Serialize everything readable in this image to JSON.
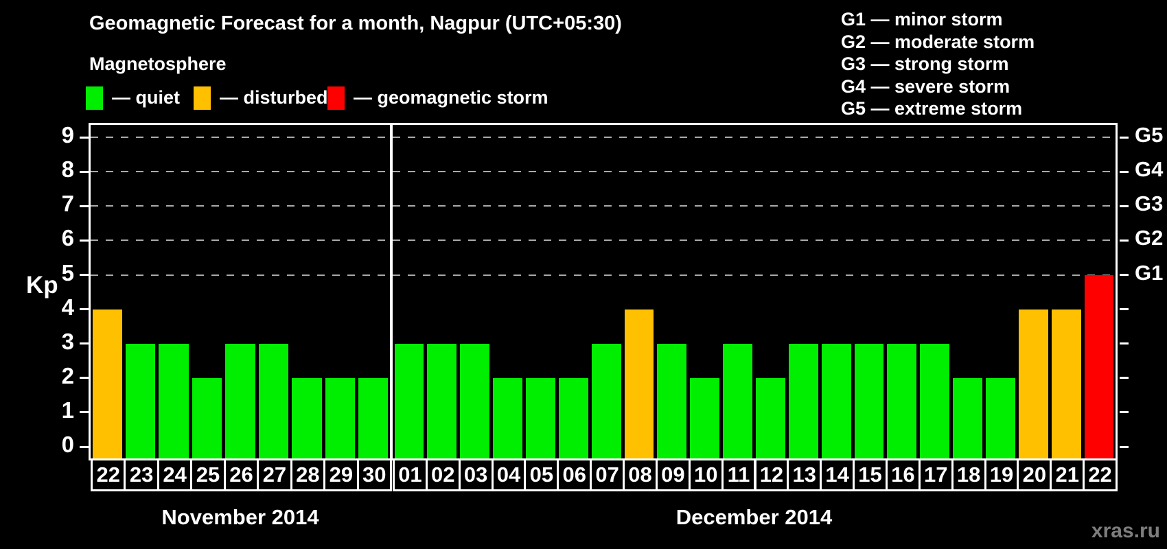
{
  "header": {
    "title": "Geomagnetic Forecast for a month, Nagpur (UTC+05:30)",
    "subtitle": "Magnetosphere"
  },
  "legend": {
    "items": [
      {
        "key": "quiet",
        "label": "— quiet",
        "color": "#00ee00"
      },
      {
        "key": "disturbed",
        "label": "— disturbed",
        "color": "#ffc000"
      },
      {
        "key": "storm",
        "label": "— geomagnetic storm",
        "color": "#ff0000"
      }
    ]
  },
  "g_legend": {
    "items": [
      "G1 — minor storm",
      "G2 — moderate storm",
      "G3 — strong storm",
      "G4 — severe storm",
      "G5 — extreme storm"
    ]
  },
  "axis": {
    "kp_label": "Kp"
  },
  "watermark": {
    "text": "xras.ru"
  },
  "chart_data": {
    "type": "bar",
    "title": "Geomagnetic Forecast for a month, Nagpur (UTC+05:30)",
    "ylabel": "Kp",
    "ylim": [
      0,
      9.7
    ],
    "y_ticks": [
      0,
      1,
      2,
      3,
      4,
      5,
      6,
      7,
      8,
      9
    ],
    "gridlines_at": [
      5,
      6,
      7,
      8,
      9
    ],
    "grid": "dashed",
    "legend_position": "top",
    "right_axis": [
      {
        "kp": 5,
        "label": "G1"
      },
      {
        "kp": 6,
        "label": "G2"
      },
      {
        "kp": 7,
        "label": "G3"
      },
      {
        "kp": 8,
        "label": "G4"
      },
      {
        "kp": 9,
        "label": "G5"
      }
    ],
    "status_colors": {
      "quiet": "#00ee00",
      "disturbed": "#ffc000",
      "storm": "#ff0000"
    },
    "groups": [
      {
        "month": "November 2014",
        "days": [
          "22",
          "23",
          "24",
          "25",
          "26",
          "27",
          "28",
          "29",
          "30"
        ],
        "values": [
          4,
          3,
          3,
          2,
          3,
          3,
          2,
          2,
          2
        ],
        "status": [
          "disturbed",
          "quiet",
          "quiet",
          "quiet",
          "quiet",
          "quiet",
          "quiet",
          "quiet",
          "quiet"
        ]
      },
      {
        "month": "December 2014",
        "days": [
          "01",
          "02",
          "03",
          "04",
          "05",
          "06",
          "07",
          "08",
          "09",
          "10",
          "11",
          "12",
          "13",
          "14",
          "15",
          "16",
          "17",
          "18",
          "19",
          "20",
          "21",
          "22"
        ],
        "values": [
          3,
          3,
          3,
          2,
          2,
          2,
          3,
          4,
          3,
          2,
          3,
          2,
          3,
          3,
          3,
          3,
          3,
          2,
          2,
          4,
          4,
          5
        ],
        "status": [
          "quiet",
          "quiet",
          "quiet",
          "quiet",
          "quiet",
          "quiet",
          "quiet",
          "disturbed",
          "quiet",
          "quiet",
          "quiet",
          "quiet",
          "quiet",
          "quiet",
          "quiet",
          "quiet",
          "quiet",
          "quiet",
          "quiet",
          "disturbed",
          "disturbed",
          "storm"
        ]
      }
    ]
  }
}
